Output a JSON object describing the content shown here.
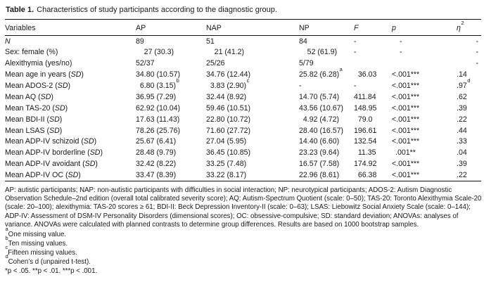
{
  "title": {
    "bold": "Table 1.",
    "rest": "Characteristics of study participants according to the diagnostic group."
  },
  "table": {
    "columns": [
      {
        "key": "label",
        "label": "Variables"
      },
      {
        "key": "ap",
        "label": "AP"
      },
      {
        "key": "nap",
        "label": "NAP"
      },
      {
        "key": "np",
        "label": "NP"
      },
      {
        "key": "f",
        "label": "F",
        "italic": true
      },
      {
        "key": "p",
        "label": "p",
        "italic": true
      },
      {
        "key": "eta",
        "label": "η",
        "sup": "2",
        "italic": true
      }
    ],
    "rows": [
      {
        "label": "N",
        "italic": true,
        "ap": "89",
        "nap": "51",
        "np": "84",
        "f": "-",
        "p": "-",
        "eta": "-"
      },
      {
        "label": "Sex: female (%)",
        "ap": "27 (30.3)",
        "nap": "21 (41.2)",
        "np": "52 (61.9)",
        "f": "-",
        "p": "-",
        "eta": "-"
      },
      {
        "label": "Alexithymia (yes/no)",
        "ap": "52/37",
        "nap": "25/26",
        "np": "5/79",
        "f": "",
        "p": "",
        "eta": "-"
      },
      {
        "label": "Mean age in years",
        "sd": true,
        "ap": "34.80 (10.57)",
        "nap": "34.76 (12.44)",
        "np": "25.82 (6.28)",
        "np_sup": "a",
        "f": "36.03",
        "p": "<.001***",
        "eta": ".14"
      },
      {
        "label": "Mean ADOS-2",
        "sd": true,
        "ap": "6.80 (3.15)",
        "ap_sup": "b",
        "nap": "3.83 (2.90)",
        "nap_sup": "c",
        "np": "-",
        "f": "-",
        "p": "<.001***",
        "eta": ".97",
        "eta_sup": "d"
      },
      {
        "label": "Mean AQ",
        "sd": true,
        "ap": "36.95 (7.29)",
        "nap": "32.44 (8.92)",
        "np": "14.70 (5.74)",
        "f": "411.84",
        "p": "<.001***",
        "eta": ".62"
      },
      {
        "label": "Mean TAS-20",
        "sd": true,
        "ap": "62.92 (10.04)",
        "nap": "59.46 (10.51)",
        "np": "43.56 (10.67)",
        "f": "148.95",
        "p": "<.001***",
        "eta": ".39"
      },
      {
        "label": "Mean BDI-II",
        "sd": true,
        "ap": "17.63 (11.43)",
        "nap": "22.80 (10.72)",
        "np": "4.92 (4.72)",
        "f": "79.0",
        "p": "<.001***",
        "eta": ".22"
      },
      {
        "label": "Mean LSAS",
        "sd": true,
        "ap": "78.26 (25.76)",
        "nap": "71.60 (27.72)",
        "np": "28.40 (16.57)",
        "f": "196.61",
        "p": "<.001***",
        "eta": ".44"
      },
      {
        "label": "Mean ADP-IV schizoid",
        "sd": true,
        "ap": "25.67 (6.41)",
        "nap": "27.04 (5.95)",
        "np": "14.40 (6.60)",
        "f": "132.54",
        "p": "<.001***",
        "eta": ".33"
      },
      {
        "label": "Mean ADP-IV borderline",
        "sd": true,
        "ap": "28.48 (9.79)",
        "nap": "36.45 (10.85)",
        "np": "23.23 (9.64)",
        "f": "11.35",
        "p": ".001**",
        "eta": ".04"
      },
      {
        "label": "Mean ADP-IV avoidant",
        "sd": true,
        "ap": "32.42 (8.22)",
        "nap": "33.25 (7.48)",
        "np": "16.57 (7.58)",
        "f": "174.92",
        "p": "<.001***",
        "eta": ".39"
      },
      {
        "label": "Mean ADP-IV OC",
        "sd": true,
        "ap": "33.47 (8.39)",
        "nap": "33.22 (8.17)",
        "np": "22.96 (8.61)",
        "f": "66.38",
        "p": "<.001***",
        "eta": ".22"
      }
    ]
  },
  "footnotes": {
    "abbreviations": "AP: autistic participants; NAP: non-autistic participants with difficulties in social interaction; NP: neurotypical participants; ADOS-2: Autism Diagnostic Observation Schedule–2nd edition (overall total calibrated severity score); AQ: Autism-Spectrum Quotient (scale: 0–50); TAS-20: Toronto Alexithymia Scale-20 (scale: 20–100); alexithymia: TAS-20 scores ≥ 61; BDI-II: Beck Depression Inventory-II (scale: 0–63); LSAS: Liebowitz Social Anxiety Scale (scale: 0–144); ADP-IV: Assessment of DSM-IV Personality Disorders (dimensional scores); OC: obsessive-compulsive; SD: standard deviation; ANOVAs: analyses of variance. ANOVAs were calculated with planned contrasts to determine group differences. Results are based on 1000 bootstrap samples.",
    "notes": [
      {
        "marker": "a",
        "text": "One missing value."
      },
      {
        "marker": "b",
        "text": "Ten missing values."
      },
      {
        "marker": "c",
        "text": "Fifteen missing values."
      },
      {
        "marker": "d",
        "text": "Cohen’s d (unpaired t-test)."
      }
    ],
    "significance": "*p < .05. **p < .01. ***p < .001."
  }
}
